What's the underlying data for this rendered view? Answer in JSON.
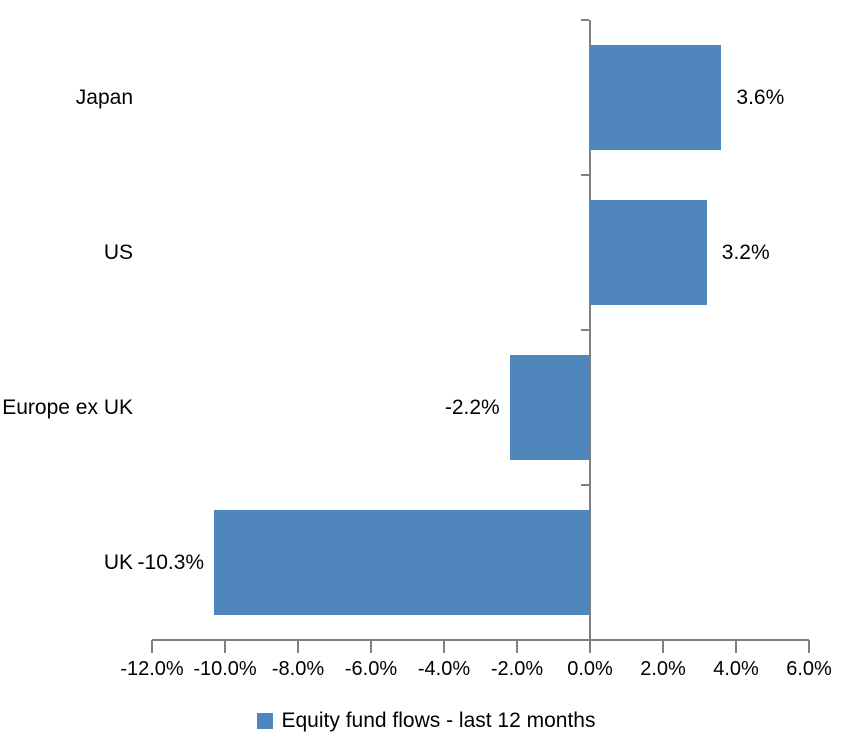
{
  "chart_data": {
    "type": "bar",
    "orientation": "horizontal",
    "categories": [
      "Japan",
      "US",
      "Europe ex UK",
      "UK"
    ],
    "values": [
      3.6,
      3.2,
      -2.2,
      -10.3
    ],
    "data_labels": [
      "3.6%",
      "3.2%",
      "-2.2%",
      "-10.3%"
    ],
    "series_name": "Equity fund flows - last 12 months",
    "title": "",
    "xlabel": "",
    "ylabel": "",
    "xlim": [
      -12,
      6
    ],
    "x_tick_step": 2,
    "x_tick_labels": [
      "-12.0%",
      "-10.0%",
      "-8.0%",
      "-6.0%",
      "-4.0%",
      "-2.0%",
      "0.0%",
      "2.0%",
      "4.0%",
      "6.0%"
    ],
    "grid": false,
    "legend_position": "bottom",
    "bar_color": "#4F86BC",
    "axis_color": "#808080",
    "text_color": "#000000"
  },
  "legend": {
    "label": "Equity fund flows - last 12 months"
  }
}
